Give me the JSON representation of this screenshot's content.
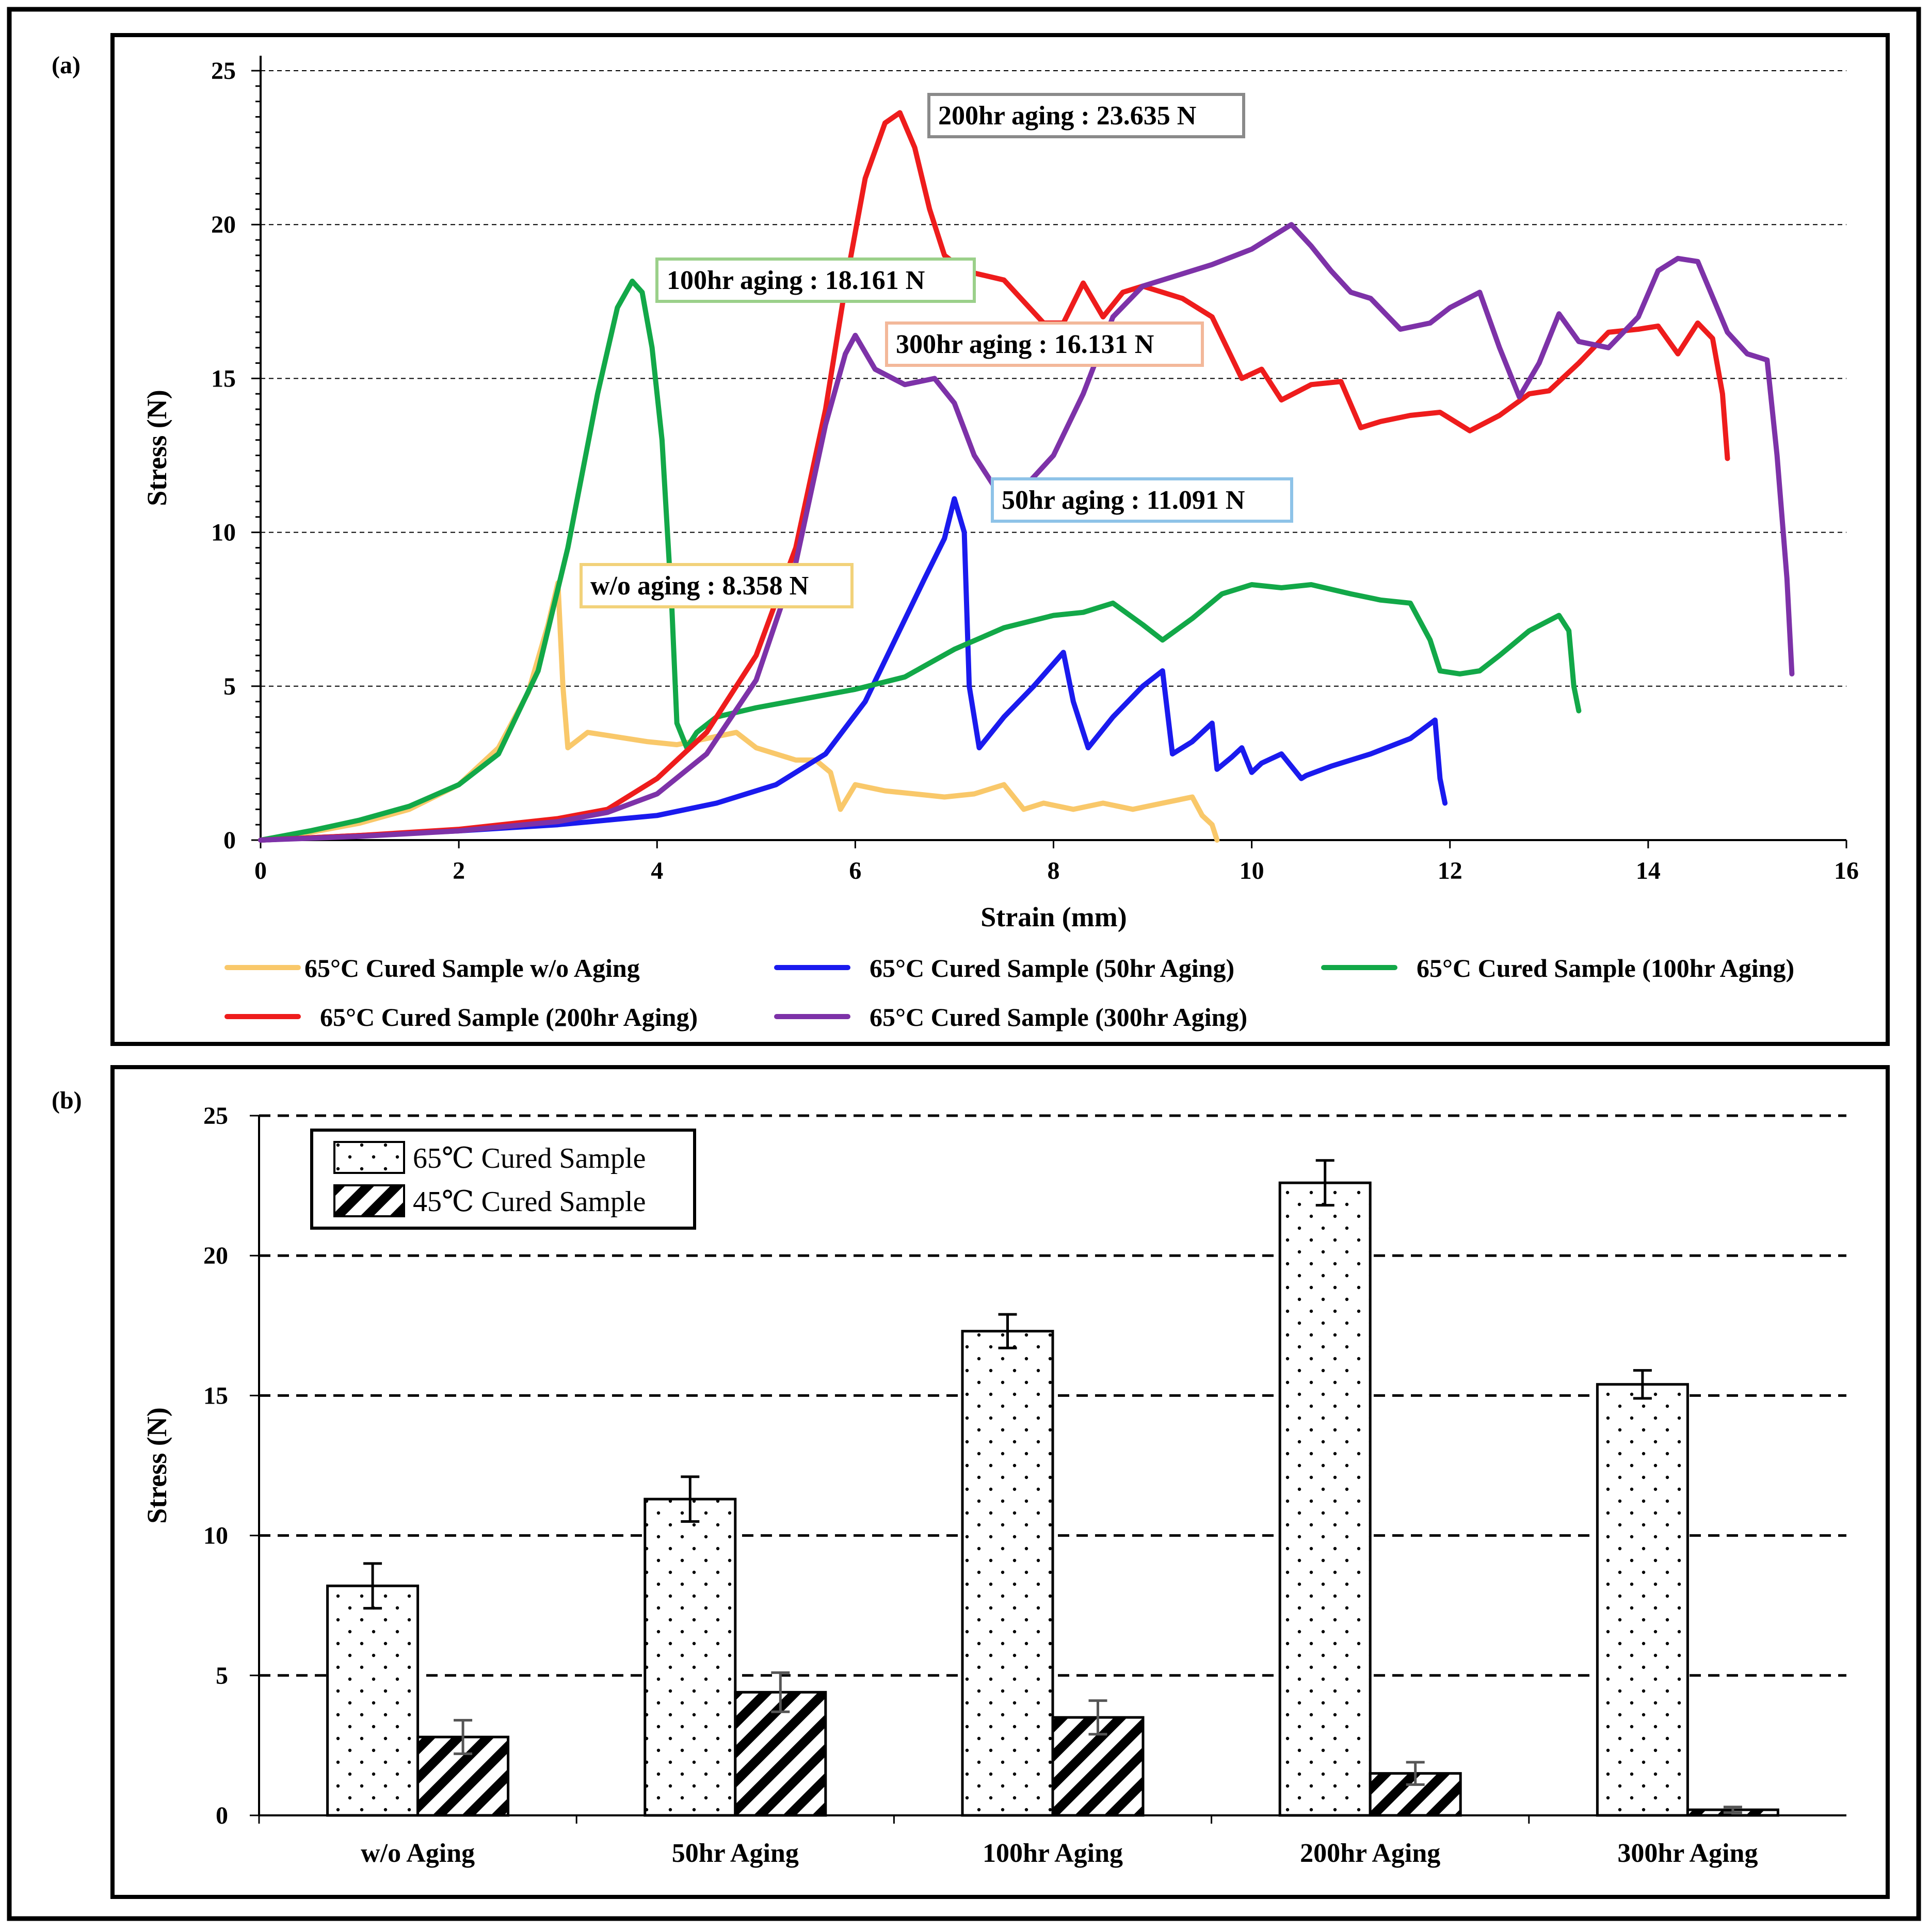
{
  "chart_data": [
    {
      "panel": "(a)",
      "type": "line",
      "xlabel": "Strain (mm)",
      "ylabel": "Stress (N)",
      "xlim": [
        0,
        16
      ],
      "ylim": [
        0,
        25
      ],
      "xticks": [
        "0",
        "2",
        "4",
        "6",
        "8",
        "10",
        "12",
        "14",
        "16"
      ],
      "yticks": [
        "0",
        "5",
        "10",
        "15",
        "20",
        "25"
      ],
      "grid": "horizontal dashed",
      "legend_position": "bottom",
      "series": [
        {
          "name": "65°C Cured Sample w/o Aging",
          "color": "#f9c86a",
          "x": [
            0,
            0.5,
            1,
            1.5,
            2,
            2.4,
            2.7,
            2.9,
            3.0,
            3.05,
            3.1,
            3.3,
            3.5,
            3.7,
            3.9,
            4.2,
            4.5,
            4.8,
            5.0,
            5.2,
            5.4,
            5.6,
            5.75,
            5.85,
            6.0,
            6.3,
            6.6,
            6.9,
            7.2,
            7.5,
            7.7,
            7.9,
            8.2,
            8.5,
            8.8,
            9.1,
            9.4,
            9.5,
            9.6,
            9.65
          ],
          "y": [
            0,
            0.25,
            0.55,
            1.0,
            1.8,
            3.0,
            4.8,
            7.0,
            8.358,
            5.0,
            3.0,
            3.5,
            3.4,
            3.3,
            3.2,
            3.1,
            3.3,
            3.5,
            3.0,
            2.8,
            2.6,
            2.6,
            2.2,
            1.0,
            1.8,
            1.6,
            1.5,
            1.4,
            1.5,
            1.8,
            1.0,
            1.2,
            1.0,
            1.2,
            1.0,
            1.2,
            1.4,
            0.8,
            0.5,
            0.0
          ]
        },
        {
          "name": "65°C Cured Sample (50hr Aging)",
          "color": "#1a1aee",
          "x": [
            0,
            1,
            2,
            3,
            4,
            4.6,
            5.2,
            5.7,
            6.1,
            6.4,
            6.7,
            6.9,
            7.0,
            7.1,
            7.15,
            7.25,
            7.5,
            7.8,
            8.1,
            8.2,
            8.35,
            8.6,
            8.9,
            9.1,
            9.2,
            9.4,
            9.6,
            9.65,
            9.8,
            9.9,
            10.0,
            10.1,
            10.3,
            10.5,
            10.55,
            10.8,
            11.2,
            11.6,
            11.85,
            11.9,
            11.95
          ],
          "y": [
            0,
            0.15,
            0.3,
            0.5,
            0.8,
            1.2,
            1.8,
            2.8,
            4.5,
            6.5,
            8.5,
            9.8,
            11.091,
            10.0,
            5.0,
            3.0,
            4.0,
            5.0,
            6.1,
            4.5,
            3.0,
            4.0,
            5.0,
            5.5,
            2.8,
            3.2,
            3.8,
            2.3,
            2.7,
            3.0,
            2.2,
            2.5,
            2.8,
            2.0,
            2.1,
            2.4,
            2.8,
            3.3,
            3.9,
            2.0,
            1.2
          ]
        },
        {
          "name": "65°C Cured Sample (100hr Aging)",
          "color": "#12a848",
          "x": [
            0,
            0.5,
            1,
            1.5,
            2,
            2.4,
            2.8,
            3.1,
            3.4,
            3.6,
            3.75,
            3.85,
            3.95,
            4.05,
            4.15,
            4.2,
            4.3,
            4.4,
            4.6,
            5.0,
            5.5,
            6.0,
            6.5,
            7.0,
            7.5,
            8.0,
            8.3,
            8.6,
            8.9,
            9.1,
            9.4,
            9.7,
            10.0,
            10.3,
            10.6,
            11.0,
            11.3,
            11.6,
            11.8,
            11.9,
            12.1,
            12.3,
            12.5,
            12.8,
            13.1,
            13.2,
            13.25,
            13.3
          ],
          "y": [
            0,
            0.3,
            0.65,
            1.1,
            1.8,
            2.8,
            5.5,
            9.5,
            14.5,
            17.3,
            18.161,
            17.8,
            16.0,
            13.0,
            7.5,
            3.8,
            3.0,
            3.5,
            4.0,
            4.3,
            4.6,
            4.9,
            5.3,
            6.2,
            6.9,
            7.3,
            7.4,
            7.7,
            7.0,
            6.5,
            7.2,
            8.0,
            8.3,
            8.2,
            8.3,
            8.0,
            7.8,
            7.7,
            6.5,
            5.5,
            5.4,
            5.5,
            6.0,
            6.8,
            7.3,
            6.8,
            5.0,
            4.2
          ]
        },
        {
          "name": "65°C Cured Sample (200hr Aging)",
          "color": "#ee1c1c",
          "x": [
            0,
            1,
            2,
            3,
            3.5,
            4.0,
            4.5,
            5.0,
            5.4,
            5.7,
            5.9,
            6.1,
            6.3,
            6.45,
            6.6,
            6.75,
            6.9,
            7.1,
            7.5,
            7.9,
            8.1,
            8.3,
            8.5,
            8.7,
            8.9,
            9.1,
            9.3,
            9.6,
            9.9,
            10.1,
            10.3,
            10.6,
            10.9,
            11.1,
            11.3,
            11.6,
            11.9,
            12.2,
            12.5,
            12.8,
            13.0,
            13.3,
            13.6,
            13.9,
            14.1,
            14.3,
            14.5,
            14.65,
            14.75,
            14.8
          ],
          "y": [
            0,
            0.15,
            0.35,
            0.7,
            1.0,
            2.0,
            3.5,
            6.0,
            9.5,
            14.0,
            18.0,
            21.5,
            23.3,
            23.635,
            22.5,
            20.5,
            19.0,
            18.5,
            18.2,
            16.8,
            16.8,
            18.1,
            17.0,
            17.8,
            18.0,
            17.8,
            17.6,
            17.0,
            15.0,
            15.3,
            14.3,
            14.8,
            14.9,
            13.4,
            13.6,
            13.8,
            13.9,
            13.3,
            13.8,
            14.5,
            14.6,
            15.5,
            16.5,
            16.6,
            16.7,
            15.8,
            16.8,
            16.3,
            14.5,
            12.4
          ]
        },
        {
          "name": "65°C Cured Sample (300hr Aging)",
          "color": "#7d32a8",
          "x": [
            0,
            1,
            2,
            3,
            3.5,
            4.0,
            4.5,
            5.0,
            5.4,
            5.7,
            5.9,
            6.0,
            6.2,
            6.5,
            6.8,
            7.0,
            7.2,
            7.4,
            7.6,
            8.0,
            8.3,
            8.6,
            8.9,
            9.2,
            9.6,
            10.0,
            10.4,
            10.6,
            10.8,
            11.0,
            11.2,
            11.5,
            11.8,
            12.0,
            12.3,
            12.5,
            12.7,
            12.9,
            13.1,
            13.3,
            13.6,
            13.9,
            14.1,
            14.3,
            14.5,
            14.8,
            15.0,
            15.2,
            15.3,
            15.4,
            15.45
          ],
          "y": [
            0,
            0.12,
            0.3,
            0.6,
            0.9,
            1.5,
            2.8,
            5.2,
            9.0,
            13.5,
            15.8,
            16.4,
            15.3,
            14.8,
            15.0,
            14.2,
            12.5,
            11.5,
            11.091,
            12.5,
            14.5,
            17.0,
            18.0,
            18.3,
            18.7,
            19.2,
            20.0,
            19.3,
            18.5,
            17.8,
            17.6,
            16.6,
            16.8,
            17.3,
            17.8,
            16.0,
            14.4,
            15.5,
            17.1,
            16.2,
            16.0,
            17.0,
            18.5,
            18.9,
            18.8,
            16.5,
            15.8,
            15.6,
            12.5,
            8.5,
            5.4
          ]
        }
      ],
      "annotations": [
        {
          "text": "200hr aging : 23.635 N",
          "border": "#8a8a8a"
        },
        {
          "text": "100hr aging : 18.161 N",
          "border": "#9bd08a"
        },
        {
          "text": "300hr aging : 16.131 N",
          "border": "#f3b89a"
        },
        {
          "text": "50hr aging : 11.091 N",
          "border": "#8ec3e8"
        },
        {
          "text": "w/o aging : 8.358 N",
          "border": "#f2d27a"
        }
      ]
    },
    {
      "panel": "(b)",
      "type": "bar",
      "ylabel": "Stress (N)",
      "ylim": [
        0,
        25
      ],
      "yticks": [
        "0",
        "5",
        "10",
        "15",
        "20",
        "25"
      ],
      "grid": "horizontal dashed",
      "legend_position": "top-left",
      "categories": [
        "w/o Aging",
        "50hr Aging",
        "100hr Aging",
        "200hr Aging",
        "300hr Aging"
      ],
      "series": [
        {
          "name": "65℃ Cured Sample",
          "pattern": "dots",
          "values": [
            8.2,
            11.3,
            17.3,
            22.6,
            15.4
          ],
          "errors": [
            0.8,
            0.8,
            0.6,
            0.8,
            0.5
          ]
        },
        {
          "name": "45℃ Cured Sample",
          "pattern": "hatch",
          "values": [
            2.8,
            4.4,
            3.5,
            1.5,
            0.2
          ],
          "errors": [
            0.6,
            0.7,
            0.6,
            0.4,
            0.1
          ]
        }
      ]
    }
  ]
}
